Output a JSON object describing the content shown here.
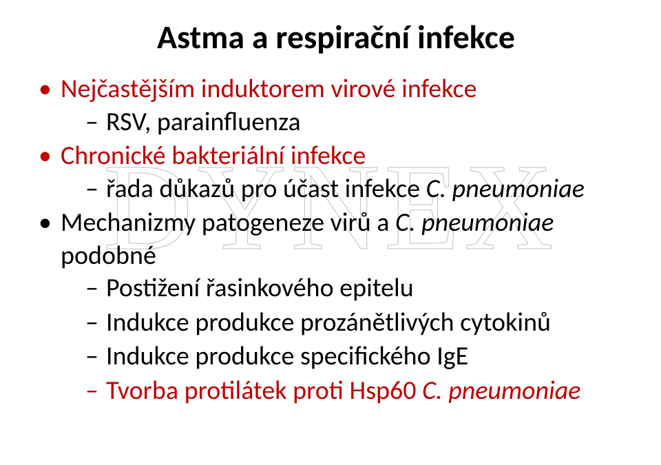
{
  "title": "Astma a respirační infekce",
  "title_fontsize": 48,
  "body_fontsize": 38,
  "colors": {
    "text": "#000000",
    "emphasis": "#c00000",
    "watermark_stroke": "#bfbfbf",
    "background": "#ffffff"
  },
  "watermark": {
    "text": "DYNEX",
    "font_family": "Times New Roman",
    "approx_fontsize": 180,
    "stroke_width": 1
  },
  "bullets": [
    {
      "text": "Nejčastějším induktorem virové infekce",
      "color": "emphasis",
      "children": [
        {
          "text": "RSV, parainfluenza",
          "color": "text"
        }
      ]
    },
    {
      "text": "Chronické bakteriální infekce",
      "color": "emphasis",
      "children": [
        {
          "parts": [
            {
              "text": "řada důkazů pro účast infekce ",
              "italic": false
            },
            {
              "text": "C. pneumoniae",
              "italic": true
            }
          ],
          "color": "text"
        }
      ]
    },
    {
      "parts": [
        {
          "text": "Mechanizmy patogeneze virů a ",
          "italic": false
        },
        {
          "text": "C. pneumoniae",
          "italic": true
        },
        {
          "text": " podobné",
          "italic": false
        }
      ],
      "color": "text",
      "children": [
        {
          "text": "Postižení řasinkového epitelu",
          "color": "text"
        },
        {
          "text": "Indukce produkce prozánětlivých cytokinů",
          "color": "text"
        },
        {
          "text": "Indukce produkce specifického IgE",
          "color": "text"
        },
        {
          "parts": [
            {
              "text": "Tvorba protilátek proti Hsp60 ",
              "italic": false
            },
            {
              "text": "C. pneumoniae",
              "italic": true
            }
          ],
          "color": "emphasis"
        }
      ]
    }
  ]
}
